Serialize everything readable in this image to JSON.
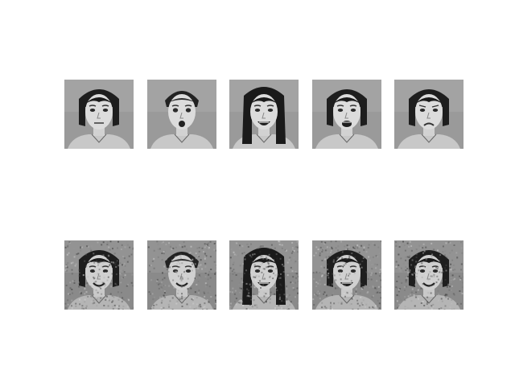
{
  "figure": {
    "background": "#ffffff",
    "rows": 2,
    "columns": 5,
    "image_style": "grayscale"
  },
  "rows": [
    {
      "kind": "original",
      "faces": [
        {
          "expression": "neutral",
          "hair": "bob"
        },
        {
          "expression": "surprised",
          "hair": "pulled-back"
        },
        {
          "expression": "open-mouth-smile",
          "hair": "long"
        },
        {
          "expression": "open-mouth",
          "hair": "bob"
        },
        {
          "expression": "frown",
          "hair": "bob"
        }
      ]
    },
    {
      "kind": "reconstructed-noisy",
      "faces": [
        {
          "expression": "smile",
          "hair": "bob"
        },
        {
          "expression": "smile",
          "hair": "pulled-back"
        },
        {
          "expression": "open-mouth-smile",
          "hair": "long"
        },
        {
          "expression": "open-mouth-smile",
          "hair": "bob"
        },
        {
          "expression": "smile",
          "hair": "bob"
        }
      ]
    }
  ]
}
